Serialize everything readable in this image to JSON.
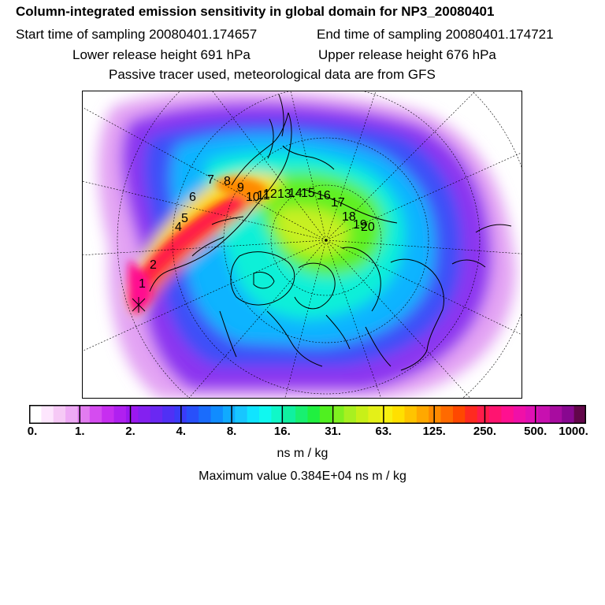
{
  "header": {
    "title": "Column-integrated emission sensitivity in global domain for NP3_20080401",
    "start_time": "Start time of sampling 20080401.174657",
    "end_time": "End time of sampling 20080401.174721",
    "lower_height": "Lower release height  691 hPa",
    "upper_height": "Upper release height  676 hPa",
    "tracer_info": "Passive tracer used, meteorological data are from GFS"
  },
  "map": {
    "trajectory_labels": [
      "1",
      "2",
      "4",
      "5",
      "6",
      "7",
      "8",
      "9",
      "10",
      "11",
      "12",
      "13",
      "14",
      "15",
      "16",
      "17",
      "18",
      "19",
      "20"
    ]
  },
  "colorbar": {
    "tick_labels": [
      "0.",
      "1.",
      "2.",
      "4.",
      "8.",
      "16.",
      "31.",
      "63.",
      "125.",
      "250.",
      "500.",
      "1000."
    ],
    "colors": [
      "#ffffff",
      "#fde6fd",
      "#f6c9f6",
      "#eeaaf5",
      "#e27cf0",
      "#d54cf0",
      "#c72ef0",
      "#b020f0",
      "#9b18f0",
      "#8420f0",
      "#6a28f2",
      "#5030f5",
      "#3a3cf8",
      "#2850fa",
      "#1a6cfc",
      "#108cff",
      "#10aaff",
      "#18c6ff",
      "#10e4ff",
      "#10f8f0",
      "#10f8c8",
      "#10f0a0",
      "#18f070",
      "#20f040",
      "#50f020",
      "#80f020",
      "#a8f020",
      "#c8f018",
      "#e4f018",
      "#f8f010",
      "#ffe000",
      "#ffc400",
      "#ffa800",
      "#ff8a00",
      "#ff6a00",
      "#ff4800",
      "#ff2a20",
      "#ff1c4a",
      "#ff1470",
      "#ff1090",
      "#f010a8",
      "#e010b4",
      "#c810b0",
      "#a80ca0",
      "#880890",
      "#62064a"
    ],
    "unit": "ns m / kg",
    "max_value": "Maximum value  0.384E+04 ns m / kg"
  }
}
